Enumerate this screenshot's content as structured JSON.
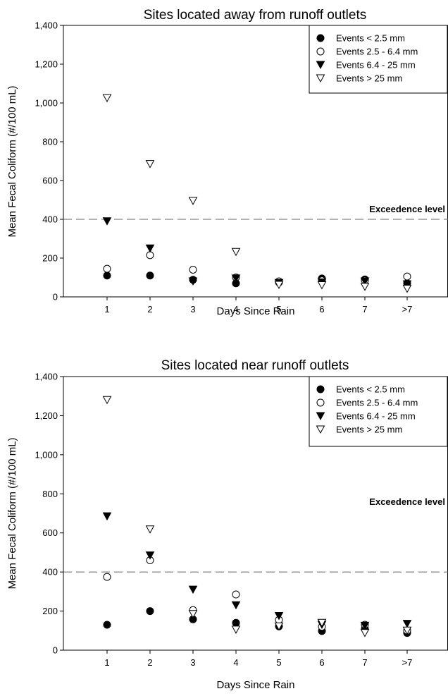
{
  "chart_data": [
    {
      "type": "scatter",
      "title": "Sites located away from runoff outlets",
      "xlabel": "Days Since Rain",
      "ylabel": "Mean Fecal Coliform (#/100 mL)",
      "ylim": [
        0,
        1400
      ],
      "yticks": [
        "0",
        "200",
        "400",
        "600",
        "800",
        "1,000",
        "1,200",
        "1,400"
      ],
      "categories": [
        "1",
        "2",
        "3",
        "4",
        "5",
        "6",
        "7",
        ">7"
      ],
      "legend_position": "top-right",
      "reference_line": {
        "value": 400,
        "label": "Exceedence level"
      },
      "series": [
        {
          "name": "Events < 2.5 mm",
          "marker": "filled-circle",
          "values": [
            110,
            110,
            88,
            70,
            75,
            95,
            90,
            70
          ]
        },
        {
          "name": "Events 2.5 - 6.4 mm",
          "marker": "open-circle",
          "values": [
            145,
            215,
            140,
            100,
            80,
            85,
            85,
            105
          ]
        },
        {
          "name": "Events 6.4 - 25 mm",
          "marker": "filled-triangle",
          "values": [
            390,
            250,
            80,
            95,
            72,
            75,
            80,
            65
          ]
        },
        {
          "name": "Events > 25 mm",
          "marker": "open-triangle",
          "values": [
            1025,
            685,
            495,
            232,
            62,
            60,
            52,
            42
          ]
        }
      ]
    },
    {
      "type": "scatter",
      "title": "Sites located near runoff outlets",
      "xlabel": "Days Since Rain",
      "ylabel": "Mean Fecal Coliform (#/100 mL)",
      "ylim": [
        0,
        1400
      ],
      "yticks": [
        "0",
        "200",
        "400",
        "600",
        "800",
        "1,000",
        "1,200",
        "1,400"
      ],
      "categories": [
        "1",
        "2",
        "3",
        "4",
        "5",
        "6",
        "7",
        ">7"
      ],
      "legend_position": "top-right",
      "reference_line": {
        "value": 400,
        "label": "Exceedence level"
      },
      "series": [
        {
          "name": "Events < 2.5 mm",
          "marker": "filled-circle",
          "values": [
            130,
            200,
            158,
            140,
            122,
            98,
            110,
            88
          ]
        },
        {
          "name": "Events 2.5 - 6.4 mm",
          "marker": "open-circle",
          "values": [
            375,
            460,
            205,
            285,
            155,
            120,
            130,
            100
          ]
        },
        {
          "name": "Events 6.4 - 25 mm",
          "marker": "filled-triangle",
          "values": [
            685,
            485,
            310,
            230,
            175,
            130,
            125,
            135
          ]
        },
        {
          "name": "Events > 25 mm",
          "marker": "open-triangle",
          "values": [
            1280,
            618,
            185,
            105,
            122,
            140,
            88,
            100
          ]
        }
      ]
    }
  ]
}
